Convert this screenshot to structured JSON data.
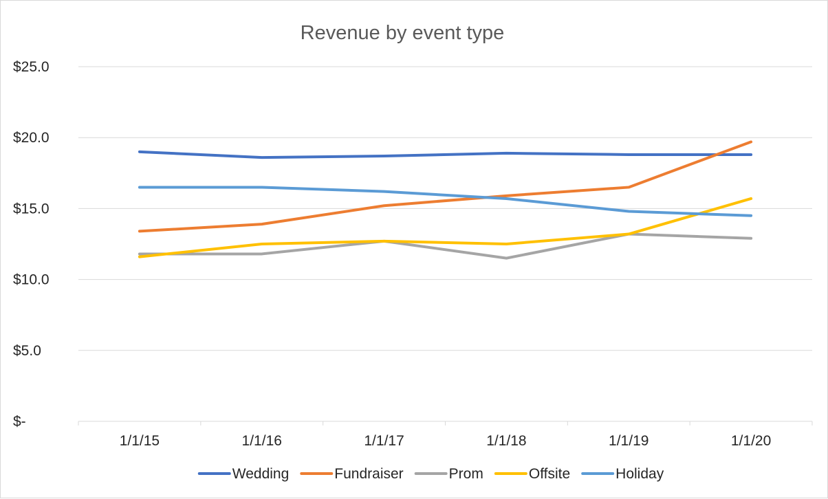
{
  "chart_data": {
    "type": "line",
    "title": "Revenue by event type",
    "xlabel": "",
    "ylabel": "",
    "categories": [
      "1/1/15",
      "1/1/16",
      "1/1/17",
      "1/1/18",
      "1/1/19",
      "1/1/20"
    ],
    "ylim": [
      0,
      25
    ],
    "yticks": [
      0,
      5,
      10,
      15,
      20,
      25
    ],
    "ytick_labels": [
      "$-",
      "$5.0",
      "$10.0",
      "$15.0",
      "$20.0",
      "$25.0"
    ],
    "grid": true,
    "legend_position": "bottom",
    "series": [
      {
        "name": "Wedding",
        "color": "#4472C4",
        "values": [
          19.0,
          18.6,
          18.7,
          18.9,
          18.8,
          18.8
        ]
      },
      {
        "name": "Fundraiser",
        "color": "#ED7D31",
        "values": [
          13.4,
          13.9,
          15.2,
          15.9,
          16.5,
          19.7
        ]
      },
      {
        "name": "Prom",
        "color": "#A5A5A5",
        "values": [
          11.8,
          11.8,
          12.7,
          11.5,
          13.2,
          12.9
        ]
      },
      {
        "name": "Offsite",
        "color": "#FFC000",
        "values": [
          11.6,
          12.5,
          12.7,
          12.5,
          13.2,
          15.7
        ]
      },
      {
        "name": "Holiday",
        "color": "#5B9BD5",
        "values": [
          16.5,
          16.5,
          16.2,
          15.7,
          14.8,
          14.5
        ]
      }
    ]
  }
}
